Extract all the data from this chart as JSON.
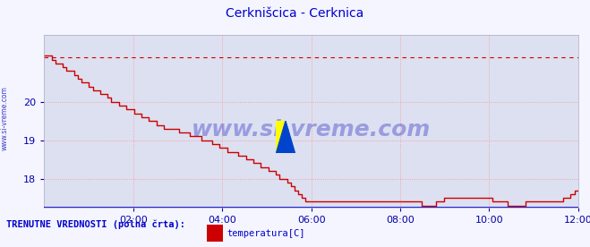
{
  "title": "Cerknišcica - Cerknica",
  "title_color": "#0000cc",
  "bg_color": "#f5f5ff",
  "plot_bg_color": "#dde0f0",
  "grid_color": "#ff8888",
  "grid_style": ":",
  "ylabel_color": "#0000aa",
  "xlabel_color": "#0000aa",
  "watermark": "www.si-vreme.com",
  "watermark_color": "#0000bb",
  "watermark_alpha": 0.3,
  "sidebar_text": "www.si-vreme.com",
  "sidebar_color": "#0000aa",
  "line_color": "#cc0000",
  "line_width": 1.0,
  "dashed_line_color": "#cc0000",
  "dashed_line_style": "--",
  "dashed_line_value": 21.15,
  "bottom_line_color": "#0000cc",
  "ylim": [
    17.25,
    21.75
  ],
  "yticks": [
    18,
    19,
    20
  ],
  "xlim": [
    0,
    144
  ],
  "xtick_labels": [
    "02:00",
    "04:00",
    "06:00",
    "08:00",
    "10:00",
    "12:00"
  ],
  "xtick_positions": [
    24,
    48,
    72,
    96,
    120,
    144
  ],
  "footer_text": "TRENUTNE VREDNOSTI (polna črta):",
  "legend_label": "temperatura[C]",
  "legend_color": "#cc0000",
  "figsize": [
    6.59,
    2.76
  ],
  "dpi": 100,
  "temp_data": [
    21.2,
    21.2,
    21.1,
    21.0,
    21.0,
    20.9,
    20.8,
    20.8,
    20.7,
    20.6,
    20.5,
    20.5,
    20.4,
    20.3,
    20.3,
    20.2,
    20.2,
    20.1,
    20.0,
    20.0,
    19.9,
    19.9,
    19.8,
    19.8,
    19.7,
    19.7,
    19.6,
    19.6,
    19.5,
    19.5,
    19.4,
    19.4,
    19.3,
    19.3,
    19.3,
    19.3,
    19.2,
    19.2,
    19.2,
    19.1,
    19.1,
    19.1,
    19.0,
    19.0,
    19.0,
    18.9,
    18.9,
    18.8,
    18.8,
    18.7,
    18.7,
    18.7,
    18.6,
    18.6,
    18.5,
    18.5,
    18.4,
    18.4,
    18.3,
    18.3,
    18.2,
    18.2,
    18.1,
    18.0,
    18.0,
    17.9,
    17.8,
    17.7,
    17.6,
    17.5,
    17.4,
    17.4,
    17.4,
    17.4,
    17.4,
    17.4,
    17.4,
    17.4,
    17.4,
    17.4,
    17.4,
    17.4,
    17.4,
    17.4,
    17.4,
    17.4,
    17.4,
    17.4,
    17.4,
    17.4,
    17.4,
    17.4,
    17.4,
    17.4,
    17.4,
    17.4,
    17.4,
    17.4,
    17.4,
    17.4,
    17.4,
    17.3,
    17.3,
    17.3,
    17.3,
    17.4,
    17.4,
    17.5,
    17.5,
    17.5,
    17.5,
    17.5,
    17.5,
    17.5,
    17.5,
    17.5,
    17.5,
    17.5,
    17.5,
    17.5,
    17.4,
    17.4,
    17.4,
    17.4,
    17.3,
    17.3,
    17.3,
    17.3,
    17.3,
    17.4,
    17.4,
    17.4,
    17.4,
    17.4,
    17.4,
    17.4,
    17.4,
    17.4,
    17.4,
    17.5,
    17.5,
    17.6,
    17.7,
    17.7
  ]
}
